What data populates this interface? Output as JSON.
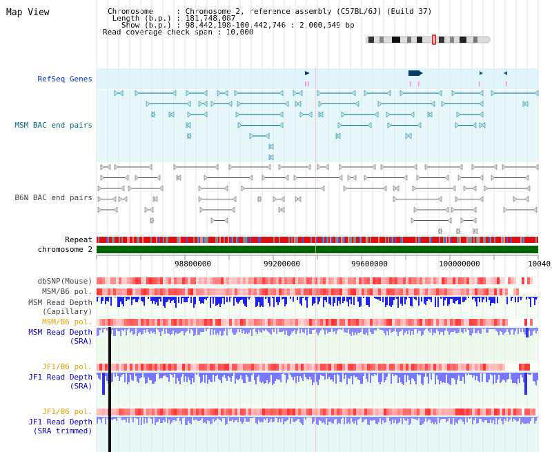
{
  "view_title": "Map View",
  "header": {
    "chromosome_line": "Chromosome     : Chromosome 2, reference assembly (C57BL/6J) (Build 37)",
    "length_line": " Length (b.p.) : 181,748,087",
    "show_line": "   Show (b.p.) : 98,442,198-100,442,746 : 2,000,549 bp",
    "coverage_line": "Read coverage check span : 10,000"
  },
  "tracks": {
    "refseq": "RefSeq Genes",
    "msm_bac": "MSM BAC end pairs",
    "b6n_bac": "B6N BAC end pairs",
    "repeat": "Repeat",
    "chromosome": "chromosome 2",
    "dbsnp": "dbSNP(Mouse)",
    "msm_b6_pol_1": "MSM/B6 pol.",
    "msm_read_depth_cap_1": "MSM Read Depth",
    "msm_read_depth_cap_2": "(Capillary)",
    "msm_b6_pol_2": "MSM/B6 pol.",
    "msm_read_depth_sra_1": "MSM Read Depth",
    "msm_read_depth_sra_2": "(SRA)",
    "jf1_b6_pol_1": "JF1/B6 pol.",
    "jf1_read_depth_sra_1": "JF1 Read Depth",
    "jf1_read_depth_sra_2": "(SRA)",
    "jf1_b6_pol_2": "JF1/B6 pol.",
    "jf1_read_depth_trim_1": "JF1 Read Depth",
    "jf1_read_depth_trim_2": "(SRA trimmed)"
  },
  "axis": {
    "ticks": [
      "98800000",
      "99200000",
      "99600000",
      "100000000",
      "10040"
    ]
  },
  "colors": {
    "refseq_bg": "#e0f4fb",
    "msm_bac_bg": "#e6f8fa",
    "b6n_bac_bg": "#ffffff",
    "chromosome_bar": "#006400",
    "msm_label": "#00688b",
    "blue_label": "#0000cc",
    "orange_label": "#e8a000"
  }
}
